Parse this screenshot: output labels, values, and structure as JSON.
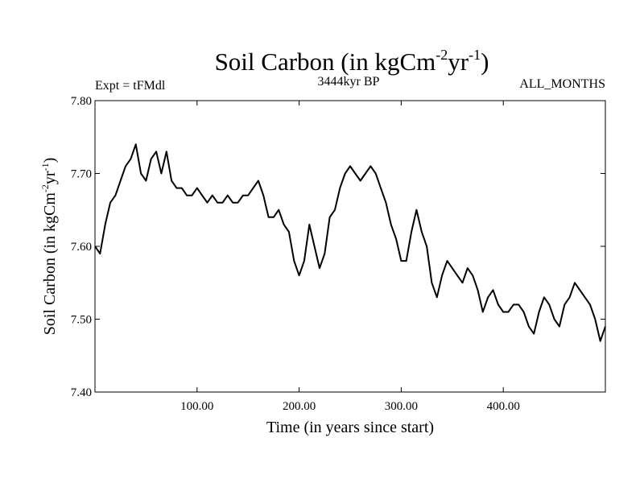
{
  "chart_data": {
    "type": "line",
    "title": {
      "base": "Soil Carbon (in kgCm",
      "sup1": "-2",
      "mid": "yr",
      "sup2": "-1",
      "end": ")"
    },
    "subtitle_left": "Expt = tFMdl",
    "subtitle_center": "3444kyr BP",
    "subtitle_right": "ALL_MONTHS",
    "xlabel": "Time (in years since start)",
    "ylabel": {
      "base": "Soil Carbon (in kgCm",
      "sup1": "-2",
      "mid": "yr",
      "sup2": "-1",
      "end": ")"
    },
    "xlim": [
      0,
      500
    ],
    "ylim": [
      7.4,
      7.8
    ],
    "x_ticks": [
      100,
      200,
      300,
      400
    ],
    "x_tick_labels": [
      "100.00",
      "200.00",
      "300.00",
      "400.00"
    ],
    "y_ticks": [
      7.4,
      7.5,
      7.6,
      7.7,
      7.8
    ],
    "y_tick_labels": [
      "7.40",
      "7.50",
      "7.60",
      "7.70",
      "7.80"
    ],
    "grid": false,
    "line_color": "#000000",
    "series": [
      {
        "x": [
          0,
          5,
          10,
          15,
          20,
          25,
          30,
          35,
          40,
          45,
          50,
          55,
          60,
          65,
          70,
          75,
          80,
          85,
          90,
          95,
          100,
          105,
          110,
          115,
          120,
          125,
          130,
          135,
          140,
          145,
          150,
          155,
          160,
          165,
          170,
          175,
          180,
          185,
          190,
          195,
          200,
          205,
          210,
          215,
          220,
          225,
          230,
          235,
          240,
          245,
          250,
          255,
          260,
          265,
          270,
          275,
          280,
          285,
          290,
          295,
          300,
          305,
          310,
          315,
          320,
          325,
          330,
          335,
          340,
          345,
          350,
          355,
          360,
          365,
          370,
          375,
          380,
          385,
          390,
          395,
          400,
          405,
          410,
          415,
          420,
          425,
          430,
          435,
          440,
          445,
          450,
          455,
          460,
          465,
          470,
          475,
          480,
          485,
          490,
          495,
          500
        ],
        "y": [
          7.6,
          7.59,
          7.63,
          7.66,
          7.67,
          7.69,
          7.71,
          7.72,
          7.74,
          7.7,
          7.69,
          7.72,
          7.73,
          7.7,
          7.73,
          7.69,
          7.68,
          7.68,
          7.67,
          7.67,
          7.68,
          7.67,
          7.66,
          7.67,
          7.66,
          7.66,
          7.67,
          7.66,
          7.66,
          7.67,
          7.67,
          7.68,
          7.69,
          7.67,
          7.64,
          7.64,
          7.65,
          7.63,
          7.62,
          7.58,
          7.56,
          7.58,
          7.63,
          7.6,
          7.57,
          7.59,
          7.64,
          7.65,
          7.68,
          7.7,
          7.71,
          7.7,
          7.69,
          7.7,
          7.71,
          7.7,
          7.68,
          7.66,
          7.63,
          7.61,
          7.58,
          7.58,
          7.62,
          7.65,
          7.62,
          7.6,
          7.55,
          7.53,
          7.56,
          7.58,
          7.57,
          7.56,
          7.55,
          7.57,
          7.56,
          7.54,
          7.51,
          7.53,
          7.54,
          7.52,
          7.51,
          7.51,
          7.52,
          7.52,
          7.51,
          7.49,
          7.48,
          7.51,
          7.53,
          7.52,
          7.5,
          7.49,
          7.52,
          7.53,
          7.55,
          7.54,
          7.53,
          7.52,
          7.5,
          7.47,
          7.49
        ]
      }
    ]
  }
}
